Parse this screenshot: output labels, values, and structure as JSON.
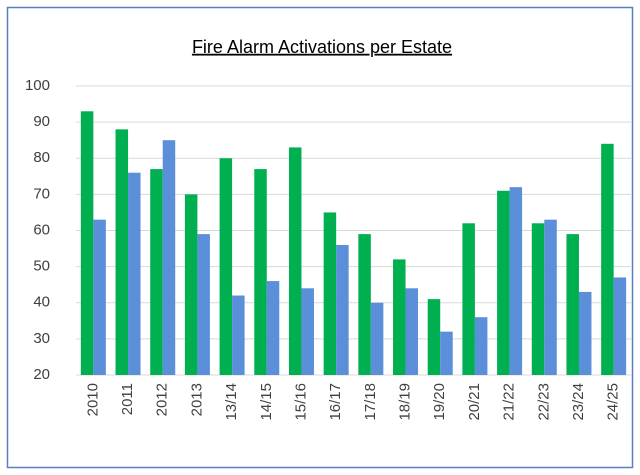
{
  "chart_data": {
    "type": "bar",
    "title": "Fire Alarm Activations per Estate",
    "categories": [
      "2010",
      "2011",
      "2012",
      "2013",
      "13/14",
      "14/15",
      "15/16",
      "16/17",
      "17/18",
      "18/19",
      "19/20",
      "20/21",
      "21/22",
      "22/23",
      "23/24",
      "24/25"
    ],
    "series": [
      {
        "color": "#00b050",
        "values": [
          93,
          88,
          77,
          70,
          80,
          77,
          83,
          65,
          59,
          52,
          41,
          62,
          71,
          62,
          59,
          84
        ]
      },
      {
        "color": "#5b8fd9",
        "values": [
          63,
          76,
          85,
          59,
          42,
          46,
          44,
          56,
          40,
          44,
          32,
          36,
          72,
          63,
          43,
          47
        ]
      }
    ],
    "ylim": [
      20,
      100
    ],
    "yticks": [
      20,
      30,
      40,
      50,
      60,
      70,
      80,
      90,
      100
    ],
    "grid": true
  }
}
